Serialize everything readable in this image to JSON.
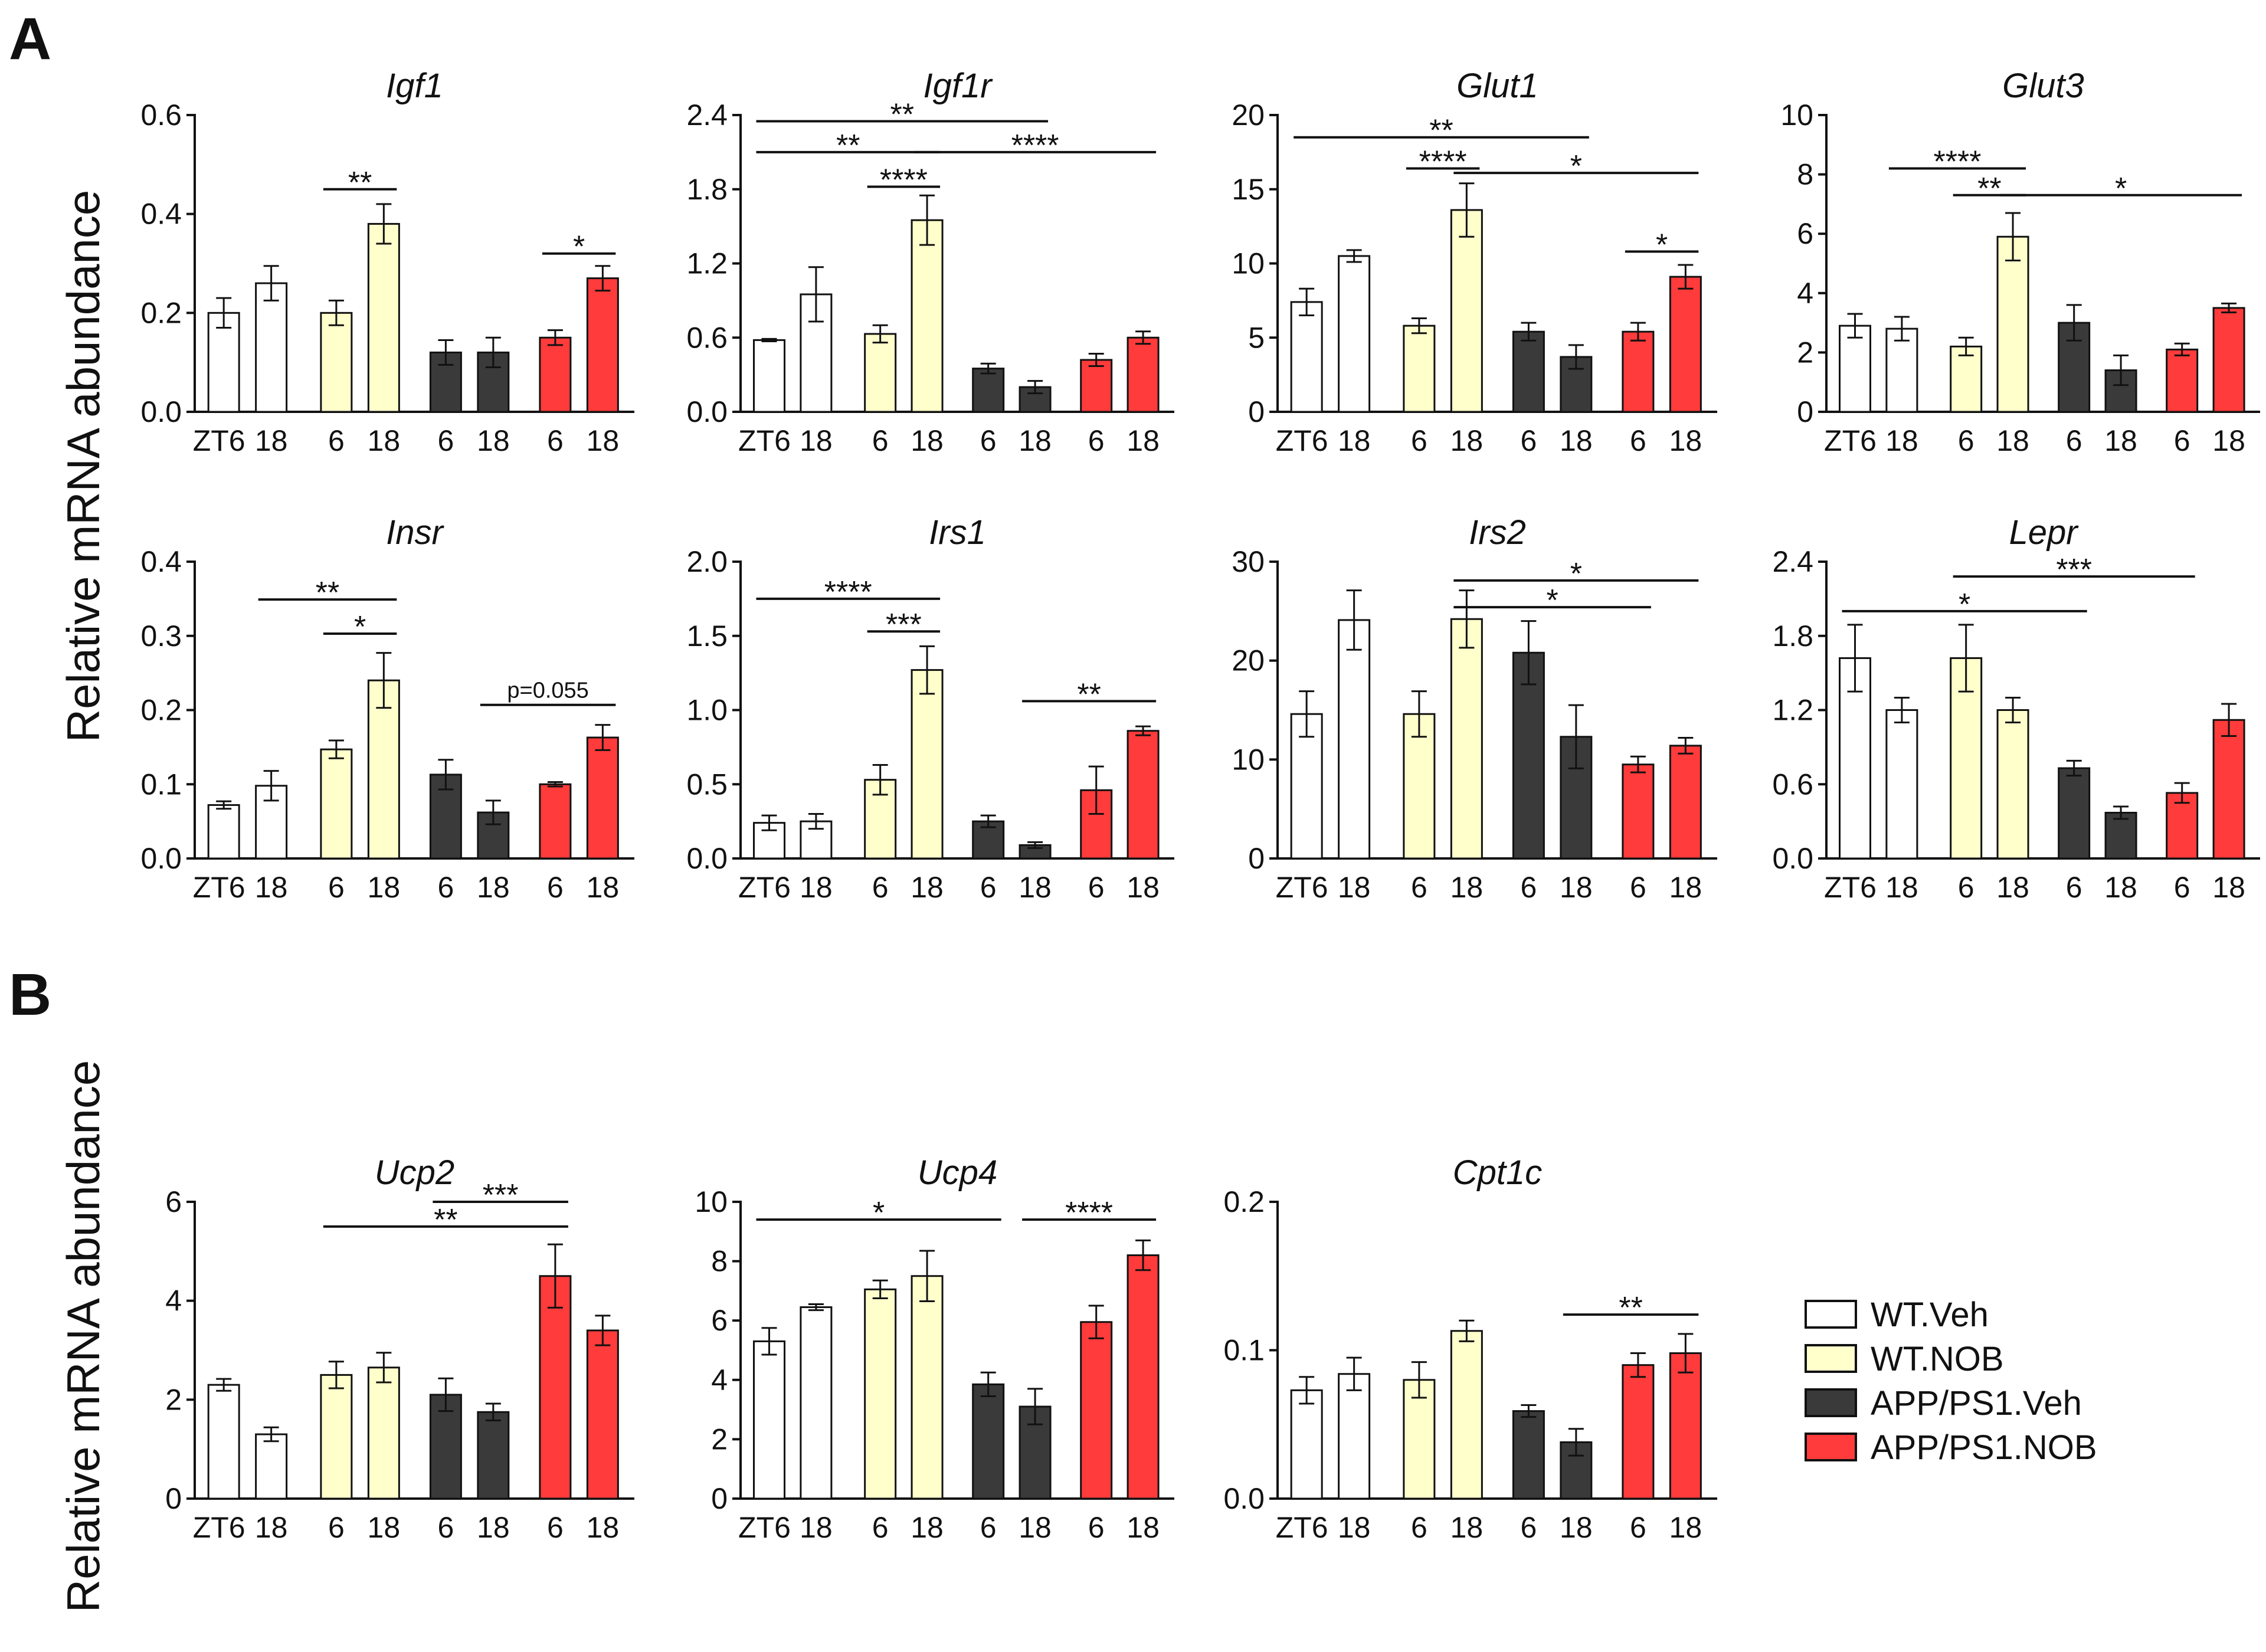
{
  "panel_labels": [
    "A",
    "B"
  ],
  "ylabel": "Relative mRNA abundance",
  "legend": [
    {
      "name": "WT.Veh",
      "fill": "#ffffff"
    },
    {
      "name": "WT.NOB",
      "fill": "#ffffcc"
    },
    {
      "name": "APP/PS1.Veh",
      "fill": "#3a3a3a"
    },
    {
      "name": "APP/PS1.NOB",
      "fill": "#ff3b3b"
    }
  ],
  "colors": {
    "WT.Veh": "#ffffff",
    "WT.NOB": "#ffffcc",
    "APP/PS1.Veh": "#3a3a3a",
    "APP/PS1.NOB": "#ff3b3b",
    "stroke": "#111111"
  },
  "chart_data": [
    {
      "type": "bar",
      "panel": "A",
      "title": "Igf1",
      "categories": [
        "ZT6",
        "18",
        "6",
        "18",
        "6",
        "18",
        "6",
        "18"
      ],
      "groups": [
        "WT.Veh",
        "WT.Veh",
        "WT.NOB",
        "WT.NOB",
        "APP/PS1.Veh",
        "APP/PS1.Veh",
        "APP/PS1.NOB",
        "APP/PS1.NOB"
      ],
      "values": [
        0.2,
        0.26,
        0.2,
        0.38,
        0.12,
        0.12,
        0.15,
        0.27
      ],
      "errors": [
        0.03,
        0.035,
        0.025,
        0.04,
        0.025,
        0.03,
        0.015,
        0.025
      ],
      "yticks": [
        "0.0",
        "0.2",
        "0.4",
        "0.6"
      ],
      "ylim": [
        0,
        0.6
      ],
      "significance": [
        {
          "label": "**",
          "from": 2,
          "to": 3,
          "y": 0.45
        },
        {
          "label": "*",
          "from": 6,
          "to": 7,
          "y": 0.32
        }
      ]
    },
    {
      "type": "bar",
      "panel": "A",
      "title": "Igf1r",
      "categories": [
        "ZT6",
        "18",
        "6",
        "18",
        "6",
        "18",
        "6",
        "18"
      ],
      "groups": [
        "WT.Veh",
        "WT.Veh",
        "WT.NOB",
        "WT.NOB",
        "APP/PS1.Veh",
        "APP/PS1.Veh",
        "APP/PS1.NOB",
        "APP/PS1.NOB"
      ],
      "values": [
        0.58,
        0.95,
        0.63,
        1.55,
        0.35,
        0.2,
        0.42,
        0.6
      ],
      "errors": [
        0.01,
        0.22,
        0.07,
        0.2,
        0.04,
        0.05,
        0.05,
        0.05
      ],
      "yticks": [
        "0.0",
        "0.6",
        "1.2",
        "1.8",
        "2.4"
      ],
      "ylim": [
        0,
        2.4
      ],
      "significance": [
        {
          "label": "**",
          "from": 0,
          "to": 5,
          "y": 2.35
        },
        {
          "label": "**",
          "from": 0,
          "to": 3,
          "y": 2.1
        },
        {
          "label": "****",
          "from": 3,
          "to": 7,
          "y": 2.1
        },
        {
          "label": "****",
          "from": 2,
          "to": 3,
          "y": 1.82
        }
      ]
    },
    {
      "type": "bar",
      "panel": "A",
      "title": "Glut1",
      "categories": [
        "ZT6",
        "18",
        "6",
        "18",
        "6",
        "18",
        "6",
        "18"
      ],
      "groups": [
        "WT.Veh",
        "WT.Veh",
        "WT.NOB",
        "WT.NOB",
        "APP/PS1.Veh",
        "APP/PS1.Veh",
        "APP/PS1.NOB",
        "APP/PS1.NOB"
      ],
      "values": [
        7.4,
        10.5,
        5.8,
        13.6,
        5.4,
        3.7,
        5.4,
        9.1
      ],
      "errors": [
        0.9,
        0.4,
        0.5,
        1.8,
        0.6,
        0.8,
        0.6,
        0.8
      ],
      "yticks": [
        "0",
        "5",
        "10",
        "15",
        "20"
      ],
      "ylim": [
        0,
        20
      ],
      "significance": [
        {
          "label": "**",
          "from": 0,
          "to": 5,
          "y": 18.5
        },
        {
          "label": "****",
          "from": 2,
          "to": 3,
          "y": 16.4
        },
        {
          "label": "*",
          "from": 3,
          "to": 7,
          "y": 16.1
        },
        {
          "label": "*",
          "from": 6,
          "to": 7,
          "y": 10.8
        }
      ]
    },
    {
      "type": "bar",
      "panel": "A",
      "title": "Glut3",
      "categories": [
        "ZT6",
        "18",
        "6",
        "18",
        "6",
        "18",
        "6",
        "18"
      ],
      "groups": [
        "WT.Veh",
        "WT.Veh",
        "WT.NOB",
        "WT.NOB",
        "APP/PS1.Veh",
        "APP/PS1.Veh",
        "APP/PS1.NOB",
        "APP/PS1.NOB"
      ],
      "values": [
        2.9,
        2.8,
        2.2,
        5.9,
        3.0,
        1.4,
        2.1,
        3.5
      ],
      "errors": [
        0.4,
        0.4,
        0.3,
        0.8,
        0.6,
        0.5,
        0.2,
        0.15
      ],
      "yticks": [
        "0",
        "2",
        "4",
        "6",
        "8",
        "10"
      ],
      "ylim": [
        0,
        10
      ],
      "significance": [
        {
          "label": "****",
          "from": 1,
          "to": 3,
          "y": 8.2
        },
        {
          "label": "**",
          "from": 2,
          "to": 3,
          "y": 7.3
        },
        {
          "label": "*",
          "from": 3,
          "to": 7,
          "y": 7.3
        }
      ]
    },
    {
      "type": "bar",
      "panel": "A",
      "title": "Insr",
      "categories": [
        "ZT6",
        "18",
        "6",
        "18",
        "6",
        "18",
        "6",
        "18"
      ],
      "groups": [
        "WT.Veh",
        "WT.Veh",
        "WT.NOB",
        "WT.NOB",
        "APP/PS1.Veh",
        "APP/PS1.Veh",
        "APP/PS1.NOB",
        "APP/PS1.NOB"
      ],
      "values": [
        0.072,
        0.098,
        0.147,
        0.24,
        0.113,
        0.062,
        0.1,
        0.163
      ],
      "errors": [
        0.005,
        0.02,
        0.012,
        0.037,
        0.02,
        0.016,
        0.003,
        0.017
      ],
      "yticks": [
        "0.0",
        "0.1",
        "0.2",
        "0.3",
        "0.4"
      ],
      "ylim": [
        0,
        0.4
      ],
      "significance": [
        {
          "label": "**",
          "from": 1,
          "to": 3,
          "y": 0.349
        },
        {
          "label": "*",
          "from": 2,
          "to": 3,
          "y": 0.303
        },
        {
          "label": "p=0.055",
          "from": 5,
          "to": 7,
          "y": 0.207
        }
      ]
    },
    {
      "type": "bar",
      "panel": "A",
      "title": "Irs1",
      "categories": [
        "ZT6",
        "18",
        "6",
        "18",
        "6",
        "18",
        "6",
        "18"
      ],
      "groups": [
        "WT.Veh",
        "WT.Veh",
        "WT.NOB",
        "WT.NOB",
        "APP/PS1.Veh",
        "APP/PS1.Veh",
        "APP/PS1.NOB",
        "APP/PS1.NOB"
      ],
      "values": [
        0.24,
        0.25,
        0.53,
        1.27,
        0.25,
        0.09,
        0.46,
        0.86
      ],
      "errors": [
        0.05,
        0.05,
        0.1,
        0.16,
        0.04,
        0.02,
        0.16,
        0.03
      ],
      "yticks": [
        "0.0",
        "0.5",
        "1.0",
        "1.5",
        "2.0"
      ],
      "ylim": [
        0,
        2.0
      ],
      "significance": [
        {
          "label": "****",
          "from": 0,
          "to": 3,
          "y": 1.75
        },
        {
          "label": "***",
          "from": 2,
          "to": 3,
          "y": 1.53
        },
        {
          "label": "**",
          "from": 5,
          "to": 7,
          "y": 1.06
        }
      ]
    },
    {
      "type": "bar",
      "panel": "A",
      "title": "Irs2",
      "categories": [
        "ZT6",
        "18",
        "6",
        "18",
        "6",
        "18",
        "6",
        "18"
      ],
      "groups": [
        "WT.Veh",
        "WT.Veh",
        "WT.NOB",
        "WT.NOB",
        "APP/PS1.Veh",
        "APP/PS1.Veh",
        "APP/PS1.NOB",
        "APP/PS1.NOB"
      ],
      "values": [
        14.6,
        24.1,
        14.6,
        24.2,
        20.8,
        12.3,
        9.5,
        11.4
      ],
      "errors": [
        2.3,
        3.0,
        2.3,
        2.9,
        3.2,
        3.2,
        0.8,
        0.8
      ],
      "yticks": [
        "0",
        "10",
        "20",
        "30"
      ],
      "ylim": [
        0,
        30
      ],
      "significance": [
        {
          "label": "*",
          "from": 3,
          "to": 7,
          "y": 28.1
        },
        {
          "label": "*",
          "from": 3,
          "to": 6,
          "y": 25.4
        }
      ]
    },
    {
      "type": "bar",
      "panel": "A",
      "title": "Lepr",
      "categories": [
        "ZT6",
        "18",
        "6",
        "18",
        "6",
        "18",
        "6",
        "18"
      ],
      "groups": [
        "WT.Veh",
        "WT.Veh",
        "WT.NOB",
        "WT.NOB",
        "APP/PS1.Veh",
        "APP/PS1.Veh",
        "APP/PS1.NOB",
        "APP/PS1.NOB"
      ],
      "values": [
        1.62,
        1.2,
        1.62,
        1.2,
        0.73,
        0.37,
        0.53,
        1.12
      ],
      "errors": [
        0.27,
        0.1,
        0.27,
        0.1,
        0.06,
        0.05,
        0.08,
        0.13
      ],
      "yticks": [
        "0.0",
        "0.6",
        "1.2",
        "1.8",
        "2.4"
      ],
      "ylim": [
        0,
        2.4
      ],
      "significance": [
        {
          "label": "***",
          "from": 2,
          "to": 6,
          "y": 2.28
        },
        {
          "label": "*",
          "from": 0,
          "to": 4,
          "y": 2.0
        }
      ]
    },
    {
      "type": "bar",
      "panel": "B",
      "title": "Ucp2",
      "categories": [
        "ZT6",
        "18",
        "6",
        "18",
        "6",
        "18",
        "6",
        "18"
      ],
      "groups": [
        "WT.Veh",
        "WT.Veh",
        "WT.NOB",
        "WT.NOB",
        "APP/PS1.Veh",
        "APP/PS1.Veh",
        "APP/PS1.NOB",
        "APP/PS1.NOB"
      ],
      "values": [
        2.3,
        1.3,
        2.5,
        2.65,
        2.1,
        1.75,
        4.5,
        3.4
      ],
      "errors": [
        0.12,
        0.14,
        0.27,
        0.3,
        0.33,
        0.17,
        0.64,
        0.3
      ],
      "yticks": [
        "0",
        "2",
        "4",
        "6"
      ],
      "ylim": [
        0,
        6
      ],
      "significance": [
        {
          "label": "***",
          "from": 4,
          "to": 6,
          "y": 6.0
        },
        {
          "label": "**",
          "from": 2,
          "to": 6,
          "y": 5.5
        }
      ]
    },
    {
      "type": "bar",
      "panel": "B",
      "title": "Ucp4",
      "categories": [
        "ZT6",
        "18",
        "6",
        "18",
        "6",
        "18",
        "6",
        "18"
      ],
      "groups": [
        "WT.Veh",
        "WT.Veh",
        "WT.NOB",
        "WT.NOB",
        "APP/PS1.Veh",
        "APP/PS1.Veh",
        "APP/PS1.NOB",
        "APP/PS1.NOB"
      ],
      "values": [
        5.3,
        6.45,
        7.05,
        7.5,
        3.85,
        3.1,
        5.95,
        8.2
      ],
      "errors": [
        0.45,
        0.1,
        0.3,
        0.85,
        0.4,
        0.6,
        0.55,
        0.5
      ],
      "yticks": [
        "0",
        "2",
        "4",
        "6",
        "8",
        "10"
      ],
      "ylim": [
        0,
        10
      ],
      "significance": [
        {
          "label": "*",
          "from": 0,
          "to": 4,
          "y": 9.4
        },
        {
          "label": "****",
          "from": 5,
          "to": 7,
          "y": 9.4
        }
      ]
    },
    {
      "type": "bar",
      "panel": "B",
      "title": "Cpt1c",
      "categories": [
        "ZT6",
        "18",
        "6",
        "18",
        "6",
        "18",
        "6",
        "18"
      ],
      "groups": [
        "WT.Veh",
        "WT.Veh",
        "WT.NOB",
        "WT.NOB",
        "APP/PS1.Veh",
        "APP/PS1.Veh",
        "APP/PS1.NOB",
        "APP/PS1.NOB"
      ],
      "values": [
        0.073,
        0.084,
        0.08,
        0.113,
        0.059,
        0.038,
        0.09,
        0.098
      ],
      "errors": [
        0.009,
        0.011,
        0.012,
        0.007,
        0.004,
        0.009,
        0.008,
        0.013
      ],
      "yticks": [
        "0.0",
        "0.1",
        "0.2"
      ],
      "ylim": [
        0,
        0.2
      ],
      "significance": [
        {
          "label": "**",
          "from": 5,
          "to": 7,
          "y": 0.124
        }
      ]
    }
  ]
}
